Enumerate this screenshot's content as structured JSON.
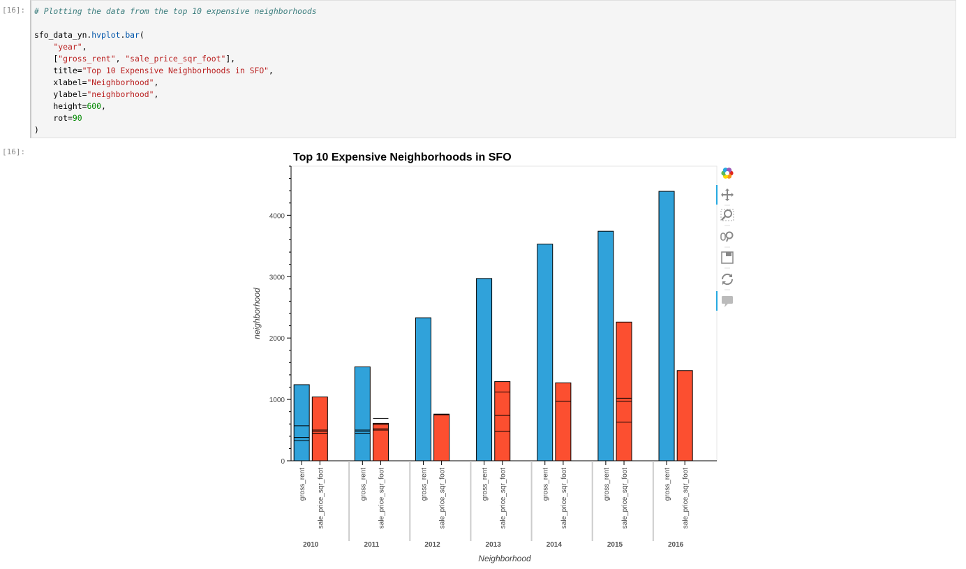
{
  "cells": {
    "input_prompt": "[16]:",
    "output_prompt": "[16]:"
  },
  "code": {
    "lines": [
      [
        {
          "t": "# Plotting the data from the top 10 expensive neighborhoods",
          "c": "cm"
        }
      ],
      [],
      [
        {
          "t": "sfo_data_yn.",
          "c": ""
        },
        {
          "t": "hvplot",
          "c": "fn"
        },
        {
          "t": ".",
          "c": ""
        },
        {
          "t": "bar",
          "c": "fn"
        },
        {
          "t": "(",
          "c": ""
        }
      ],
      [
        {
          "t": "    ",
          "c": ""
        },
        {
          "t": "\"year\"",
          "c": "st"
        },
        {
          "t": ",",
          "c": ""
        }
      ],
      [
        {
          "t": "    [",
          "c": ""
        },
        {
          "t": "\"gross_rent\"",
          "c": "st"
        },
        {
          "t": ", ",
          "c": ""
        },
        {
          "t": "\"sale_price_sqr_foot\"",
          "c": "st"
        },
        {
          "t": "],",
          "c": ""
        }
      ],
      [
        {
          "t": "    title=",
          "c": ""
        },
        {
          "t": "\"Top 10 Expensive Neighborhoods in SFO\"",
          "c": "st"
        },
        {
          "t": ",",
          "c": ""
        }
      ],
      [
        {
          "t": "    xlabel=",
          "c": ""
        },
        {
          "t": "\"Neighborhood\"",
          "c": "st"
        },
        {
          "t": ",",
          "c": ""
        }
      ],
      [
        {
          "t": "    ylabel=",
          "c": ""
        },
        {
          "t": "\"neighborhood\"",
          "c": "st"
        },
        {
          "t": ",",
          "c": ""
        }
      ],
      [
        {
          "t": "    height=",
          "c": ""
        },
        {
          "t": "600",
          "c": "nu"
        },
        {
          "t": ",",
          "c": ""
        }
      ],
      [
        {
          "t": "    rot=",
          "c": ""
        },
        {
          "t": "90",
          "c": "nu"
        }
      ],
      [
        {
          "t": ")",
          "c": ""
        }
      ]
    ]
  },
  "colors": {
    "gross_rent": "#30a2da",
    "sale_price_sqr_foot": "#fc4f30",
    "accent": "#26aae1"
  },
  "toolbar": {
    "tools": [
      "bokeh-logo-icon",
      "pan-icon",
      "box-zoom-icon",
      "wheel-zoom-icon",
      "save-icon",
      "reset-icon",
      "hover-icon"
    ]
  },
  "chart_data": {
    "type": "bar",
    "title": "Top 10 Expensive Neighborhoods in SFO",
    "xlabel": "Neighborhood",
    "ylabel": "neighborhood",
    "ylim": [
      0,
      4800
    ],
    "yticks": [
      0,
      1000,
      2000,
      3000,
      4000
    ],
    "categories": [
      "2010",
      "2011",
      "2012",
      "2013",
      "2014",
      "2015",
      "2016"
    ],
    "subcategories": [
      "gross_rent",
      "sale_price_sqr_foot"
    ],
    "series": [
      {
        "name": "gross_rent",
        "values": [
          1240,
          1530,
          2330,
          2970,
          3530,
          3740,
          4390
        ]
      },
      {
        "name": "sale_price_sqr_foot",
        "values": [
          1040,
          610,
          760,
          1290,
          1270,
          2260,
          1470
        ]
      }
    ],
    "overlap_lines": [
      [
        [
          330,
          380,
          570
        ],
        [
          450,
          480,
          500
        ]
      ],
      [
        [
          450,
          480,
          500
        ],
        [
          500,
          520,
          590,
          690
        ]
      ],
      [
        [],
        [
          750
        ]
      ],
      [
        [],
        [
          480,
          740,
          1120
        ]
      ],
      [
        [],
        [
          970
        ]
      ],
      [
        [],
        [
          630,
          970,
          1020
        ]
      ],
      [
        [],
        []
      ]
    ],
    "grid": false,
    "legend": "none"
  }
}
